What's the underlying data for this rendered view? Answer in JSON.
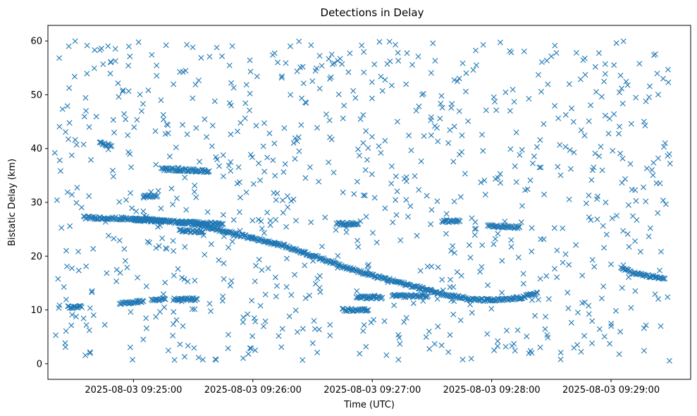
{
  "chart_data": {
    "type": "scatter",
    "title": "Detections in Delay",
    "xlabel": "Time (UTC)",
    "ylabel": "Bistatic Delay (km)",
    "x_tick_labels": [
      "2025-08-03 09:25:00",
      "2025-08-03 09:26:00",
      "2025-08-03 09:27:00",
      "2025-08-03 09:28:00",
      "2025-08-03 09:29:00"
    ],
    "x_ticks": [
      "09:25:00",
      "09:26:00",
      "09:27:00",
      "09:28:00",
      "09:29:00"
    ],
    "xlim": [
      "09:24:17",
      "09:29:40"
    ],
    "y_ticks": [
      0,
      10,
      20,
      30,
      40,
      50,
      60
    ],
    "y_tick_labels": [
      "0",
      "10",
      "20",
      "30",
      "40",
      "50",
      "60"
    ],
    "ylim": [
      -2.9,
      62.9
    ],
    "marker": "x",
    "color": "#1f77b4",
    "grid": false,
    "legend": "none",
    "tracks": [
      {
        "x": [
          "09:24:35",
          "09:25:06",
          "09:25:29",
          "09:26:15",
          "09:26:56",
          "09:27:35",
          "09:27:47"
        ],
        "y": [
          27.2,
          26.8,
          26.1,
          22.0,
          16.8,
          13.0,
          12.2
        ]
      },
      {
        "x": [
          "09:27:47",
          "09:27:59",
          "09:28:07",
          "09:28:15",
          "09:28:23"
        ],
        "y": [
          12.0,
          11.8,
          11.9,
          12.3,
          13.2
        ]
      },
      {
        "x": [
          "09:29:05",
          "09:29:12",
          "09:29:20",
          "09:29:27"
        ],
        "y": [
          17.8,
          16.8,
          16.2,
          15.8
        ]
      },
      {
        "x": [
          "09:24:27",
          "09:24:34"
        ],
        "y": [
          10.5,
          10.5
        ]
      },
      {
        "x": [
          "09:24:43",
          "09:24:49"
        ],
        "y": [
          41.0,
          40.5
        ]
      },
      {
        "x": [
          "09:24:53",
          "09:25:05"
        ],
        "y": [
          11.2,
          11.6
        ]
      },
      {
        "x": [
          "09:25:00",
          "09:25:16"
        ],
        "y": [
          26.8,
          26.5
        ]
      },
      {
        "x": [
          "09:25:09",
          "09:25:16"
        ],
        "y": [
          12.0,
          12.0
        ]
      },
      {
        "x": [
          "09:25:20",
          "09:25:32"
        ],
        "y": [
          12.0,
          12.0
        ]
      },
      {
        "x": [
          "09:25:14",
          "09:25:38"
        ],
        "y": [
          36.2,
          35.8
        ]
      },
      {
        "x": [
          "09:25:22",
          "09:25:45"
        ],
        "y": [
          26.3,
          26.0
        ]
      },
      {
        "x": [
          "09:25:23",
          "09:25:35"
        ],
        "y": [
          24.8,
          24.5
        ]
      },
      {
        "x": [
          "09:25:05",
          "09:25:12"
        ],
        "y": [
          31.2,
          31.2
        ]
      },
      {
        "x": [
          "09:26:42",
          "09:26:53"
        ],
        "y": [
          26.0,
          26.0
        ]
      },
      {
        "x": [
          "09:26:52",
          "09:27:05"
        ],
        "y": [
          12.3,
          12.3
        ]
      },
      {
        "x": [
          "09:27:10",
          "09:27:28"
        ],
        "y": [
          12.6,
          12.6
        ]
      },
      {
        "x": [
          "09:27:35",
          "09:27:44"
        ],
        "y": [
          26.5,
          26.5
        ]
      },
      {
        "x": [
          "09:27:58",
          "09:28:14"
        ],
        "y": [
          25.6,
          25.4
        ]
      },
      {
        "x": [
          "09:26:45",
          "09:26:58"
        ],
        "y": [
          10.0,
          10.0
        ]
      }
    ],
    "noise_count": 880,
    "noise_x_range": [
      "09:24:20",
      "09:29:30"
    ],
    "noise_y_range": [
      0.5,
      60
    ]
  }
}
